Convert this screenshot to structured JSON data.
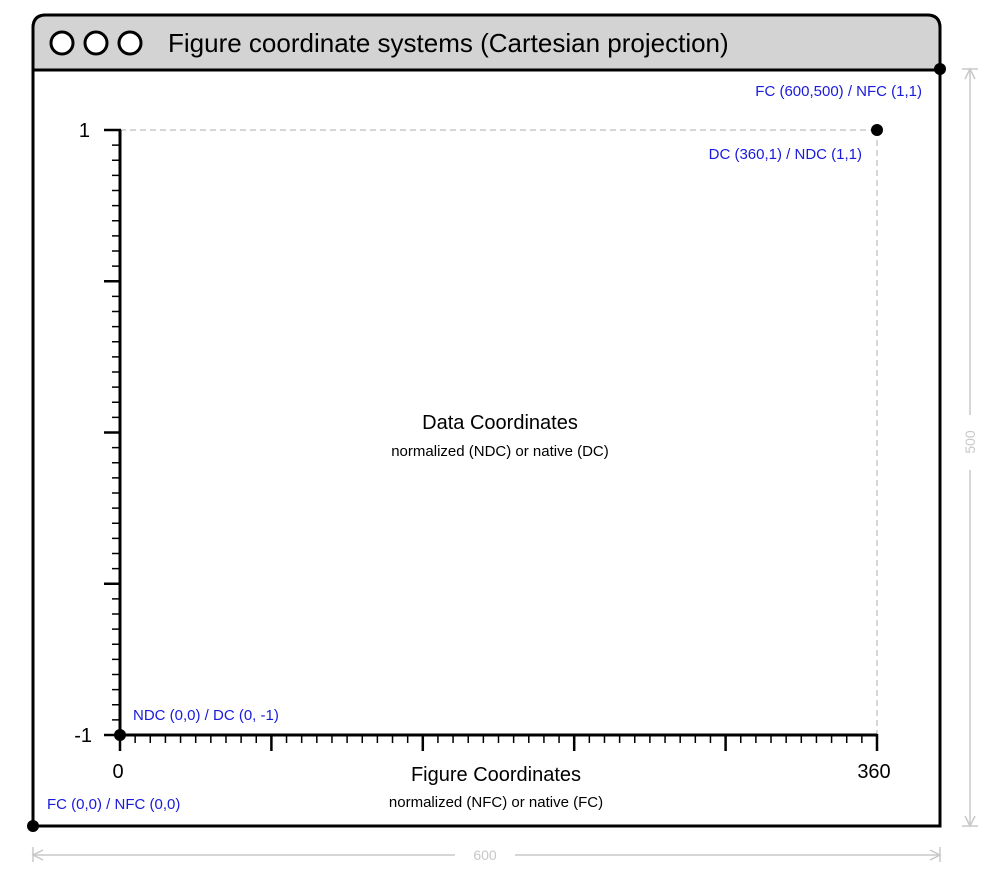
{
  "window": {
    "title": "Figure coordinate systems (Cartesian projection)",
    "buttons": [
      "close",
      "minimize",
      "zoom"
    ]
  },
  "corners": {
    "fc_top_right": "FC (600,500) / NFC (1,1)",
    "dc_top_right": "DC (360,1) / NDC (1,1)",
    "ndc_origin": "NDC (0,0) / DC (0, -1)",
    "fc_origin": "FC (0,0) / NFC (0,0)"
  },
  "axes": {
    "y_top": "1",
    "y_bottom": "-1",
    "x_left": "0",
    "x_right": "360"
  },
  "labels": {
    "data_title": "Data Coordinates",
    "data_subtitle": "normalized (NDC) or native (DC)",
    "figure_title": "Figure Coordinates",
    "figure_subtitle": "normalized (NFC) or native (FC)"
  },
  "dimensions": {
    "width": "600",
    "height": "500"
  },
  "colors": {
    "annotation": "#1a1adc",
    "titlebar": "#d3d3d3",
    "dimension": "#c8c8c8"
  }
}
